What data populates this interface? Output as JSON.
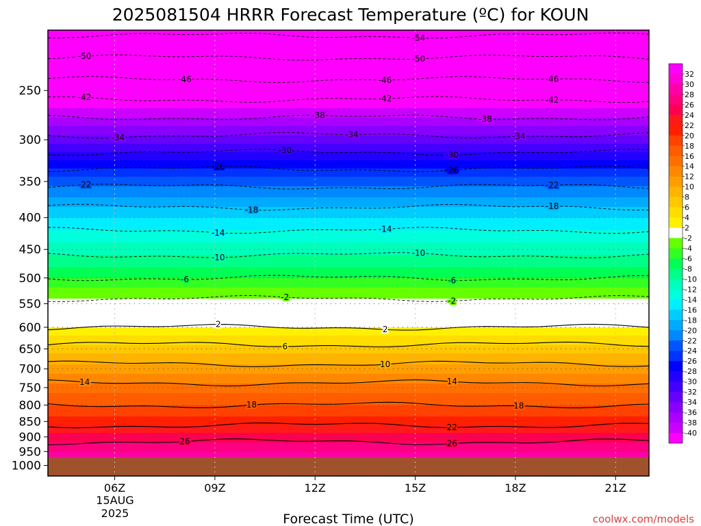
{
  "chart_data": {
    "type": "heatmap",
    "title": "2025081504 HRRR Forecast Temperature (ºC) for KOUN",
    "xlabel": "Forecast Time (UTC)",
    "ylabel": "",
    "x_ticks": [
      "06Z",
      "09Z",
      "12Z",
      "15Z",
      "18Z",
      "21Z"
    ],
    "x_tick_sub": [
      "15AUG",
      "2025"
    ],
    "x_range": [
      4.0,
      22.0
    ],
    "y_ticks": [
      250,
      300,
      350,
      400,
      450,
      500,
      550,
      600,
      650,
      700,
      750,
      800,
      850,
      900,
      950,
      1000
    ],
    "y_range": [
      200,
      1040
    ],
    "y_scale": "log",
    "y_inverted": true,
    "surface_pressure": 970,
    "colorbar_levels": [
      32,
      30,
      28,
      26,
      24,
      22,
      20,
      18,
      16,
      14,
      12,
      10,
      8,
      6,
      4,
      2,
      -2,
      -4,
      -6,
      -8,
      -10,
      -12,
      -14,
      -16,
      -18,
      -20,
      -22,
      -24,
      -26,
      -28,
      -30,
      -32,
      -34,
      -36,
      -38,
      -40
    ],
    "colorbar_colors": [
      "#ff00ff",
      "#ff00d8",
      "#ff00a8",
      "#ff0080",
      "#ff0050",
      "#ff1a1a",
      "#ff2000",
      "#ff4200",
      "#ff5c00",
      "#ff7000",
      "#ff8800",
      "#ff9e00",
      "#ffb400",
      "#ffc800",
      "#ffdd00",
      "#fff000",
      "#ffffff",
      "#66ff00",
      "#33ff22",
      "#00ff55",
      "#00ff88",
      "#00ffbb",
      "#00ffdd",
      "#00eeff",
      "#00ccff",
      "#00aaff",
      "#0088ff",
      "#0055ff",
      "#0033ff",
      "#0000ff",
      "#2200ff",
      "#4400ff",
      "#6600ff",
      "#8800ff",
      "#aa00ff",
      "#cc00ff",
      "#ff00ff"
    ],
    "profile_pressure": [
      200,
      250,
      300,
      350,
      400,
      450,
      500,
      550,
      600,
      650,
      700,
      750,
      800,
      850,
      900,
      950,
      970
    ],
    "profile_temperature": [
      -55,
      -44,
      -33,
      -23,
      -16,
      -11,
      -6,
      -1,
      2,
      7,
      11,
      15,
      18,
      21,
      25,
      28,
      29
    ],
    "contours": [
      {
        "value": -54,
        "label": "-54"
      },
      {
        "value": -50,
        "label": "-50"
      },
      {
        "value": -46,
        "label": "-46"
      },
      {
        "value": -42,
        "label": "-42"
      },
      {
        "value": -38,
        "label": "-38"
      },
      {
        "value": -34,
        "label": "-34"
      },
      {
        "value": -30,
        "label": "-30"
      },
      {
        "value": -26,
        "label": "-26"
      },
      {
        "value": -22,
        "label": "-22"
      },
      {
        "value": -18,
        "label": "-18"
      },
      {
        "value": -14,
        "label": "-14"
      },
      {
        "value": -10,
        "label": "-10"
      },
      {
        "value": -6,
        "label": "-6"
      },
      {
        "value": -2,
        "label": "-2"
      },
      {
        "value": 2,
        "label": "2"
      },
      {
        "value": 6,
        "label": "6"
      },
      {
        "value": 10,
        "label": "10"
      },
      {
        "value": 14,
        "label": "14"
      },
      {
        "value": 18,
        "label": "18"
      },
      {
        "value": 22,
        "label": "22"
      },
      {
        "value": 26,
        "label": "26"
      }
    ],
    "contour_label_positions": [
      {
        "value": -54,
        "times": [
          15.1
        ]
      },
      {
        "value": -50,
        "times": [
          5.1,
          15.1
        ]
      },
      {
        "value": -46,
        "times": [
          8.1,
          14.1,
          19.1
        ]
      },
      {
        "value": -42,
        "times": [
          5.1,
          14.1,
          19.1
        ]
      },
      {
        "value": -38,
        "times": [
          12.1,
          17.1
        ]
      },
      {
        "value": -34,
        "times": [
          6.1,
          13.1,
          18.1
        ]
      },
      {
        "value": -30,
        "times": [
          11.1,
          16.1
        ]
      },
      {
        "value": -26,
        "times": [
          9.1,
          16.1
        ]
      },
      {
        "value": -22,
        "times": [
          5.1,
          19.1
        ]
      },
      {
        "value": -18,
        "times": [
          10.1,
          19.1
        ]
      },
      {
        "value": -14,
        "times": [
          9.1,
          14.1
        ]
      },
      {
        "value": -10,
        "times": [
          9.1,
          15.1
        ]
      },
      {
        "value": -6,
        "times": [
          8.1,
          16.1
        ]
      },
      {
        "value": -2,
        "times": [
          11.1,
          16.1
        ]
      },
      {
        "value": 2,
        "times": [
          9.1,
          14.1
        ]
      },
      {
        "value": 6,
        "times": [
          11.1
        ]
      },
      {
        "value": 10,
        "times": [
          14.1
        ]
      },
      {
        "value": 14,
        "times": [
          5.1,
          16.1
        ]
      },
      {
        "value": 18,
        "times": [
          10.1,
          18.1
        ]
      },
      {
        "value": 22,
        "times": [
          16.1
        ]
      },
      {
        "value": 26,
        "times": [
          8.1,
          16.1
        ]
      }
    ],
    "surface_color": "#a0522d",
    "credit": "coolwx.com/models"
  }
}
